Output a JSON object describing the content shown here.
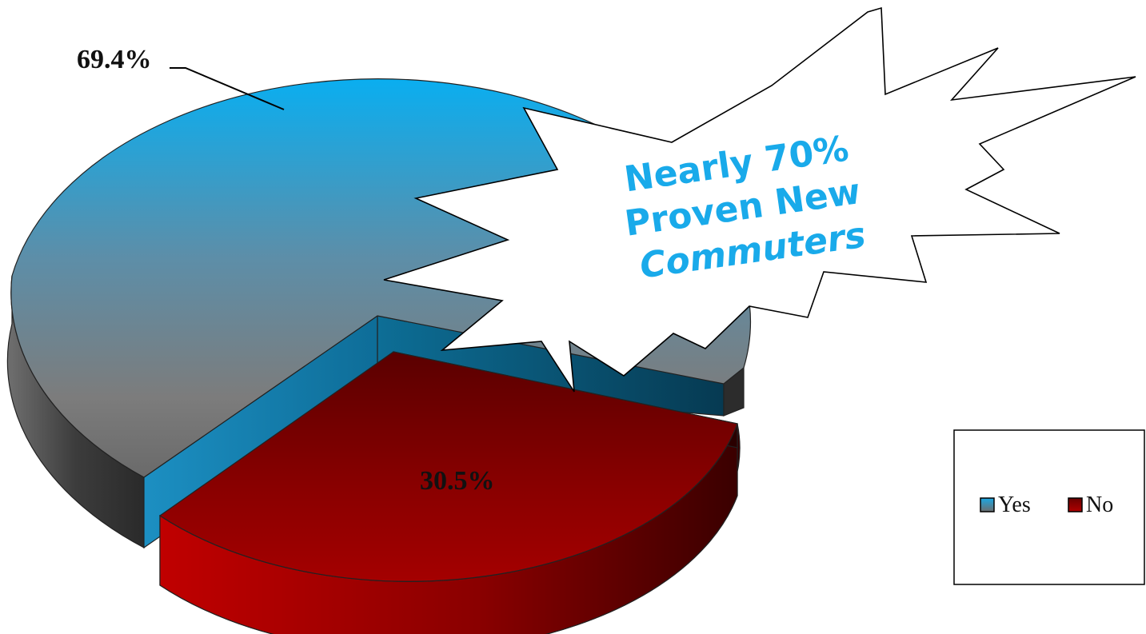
{
  "chart_data": {
    "type": "pie",
    "categories": [
      "Yes",
      "No"
    ],
    "values": [
      69.4,
      30.5
    ],
    "data_labels": [
      "69.4%",
      "30.5%"
    ],
    "colors": [
      "#1aa8e4",
      "#b00000"
    ],
    "legend": {
      "placement": "right",
      "entries": [
        "Yes",
        "No"
      ]
    },
    "annotation": {
      "lines": [
        "Nearly 70%",
        "Proven New",
        "Commuters"
      ],
      "color": "#19aaea"
    }
  }
}
